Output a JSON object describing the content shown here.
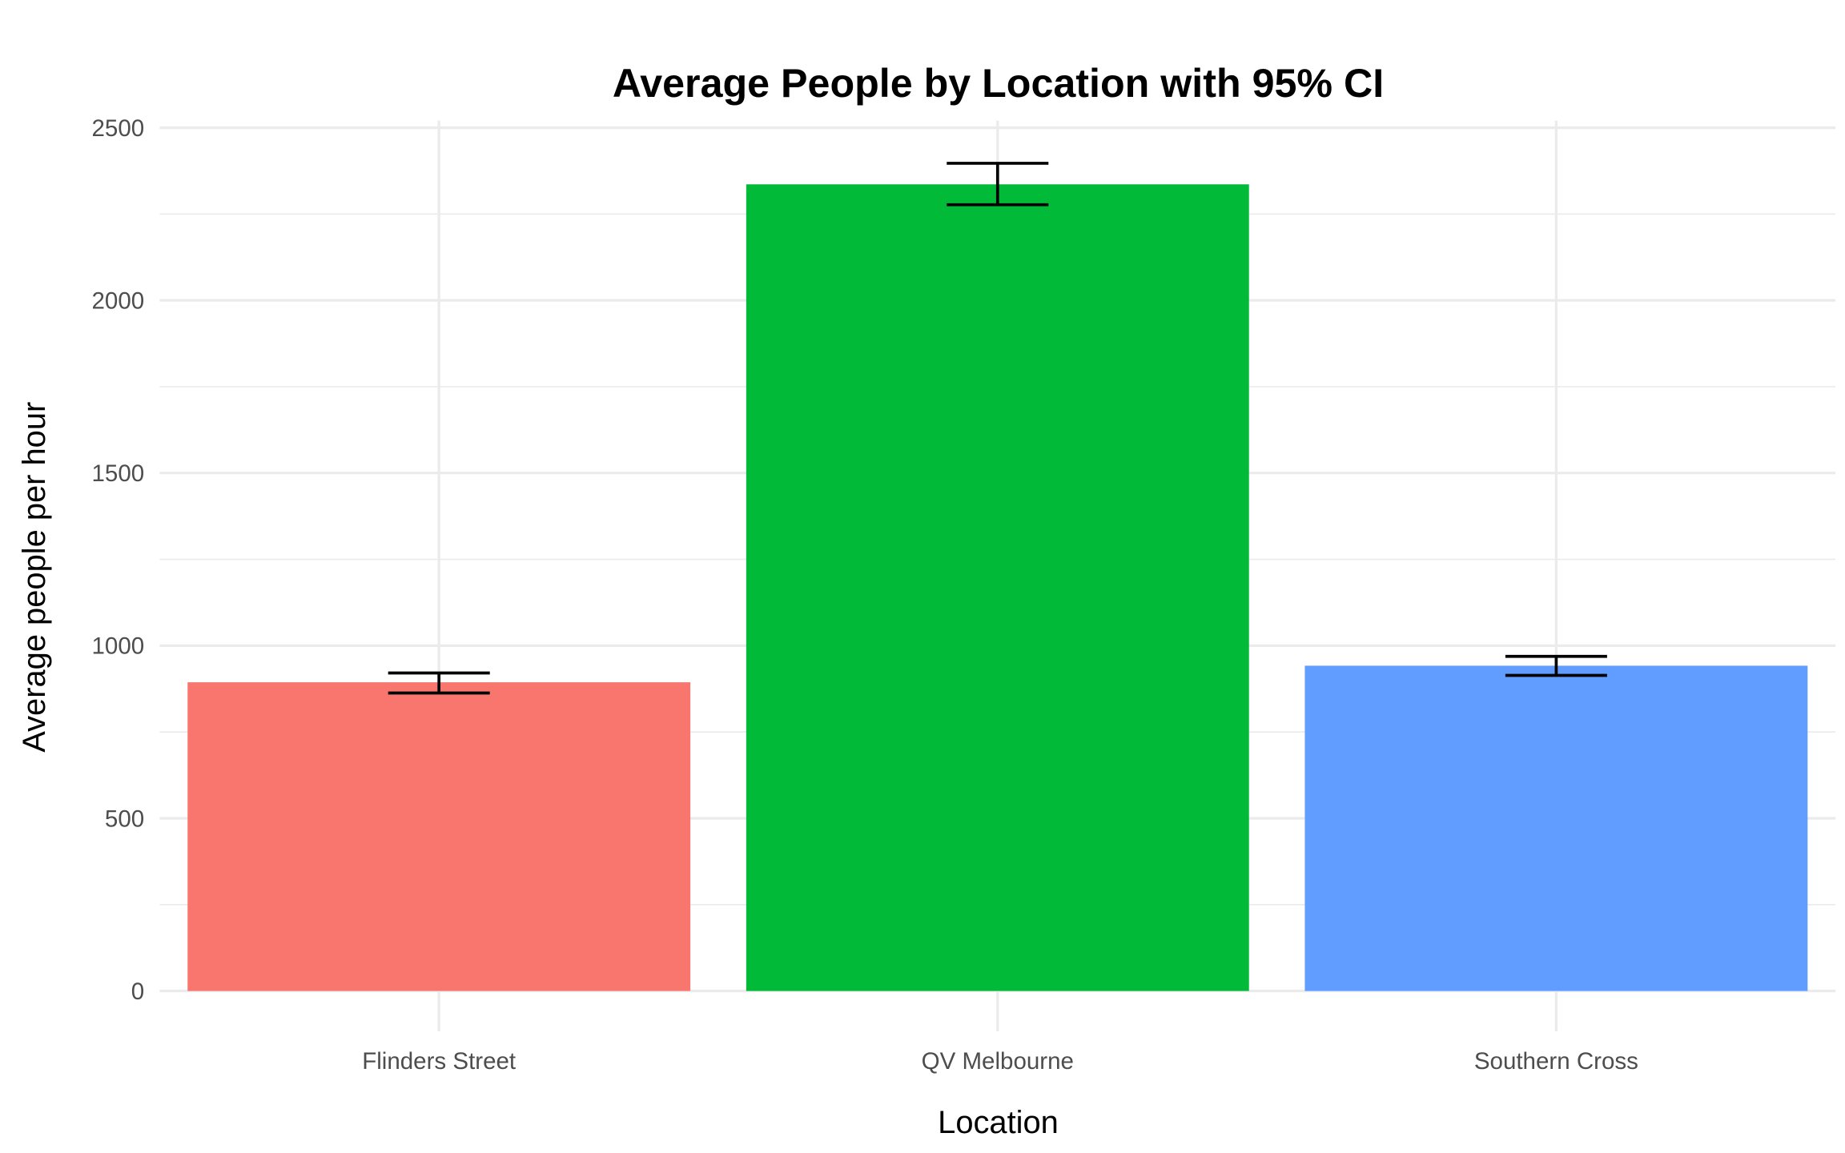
{
  "chart_data": {
    "type": "bar",
    "title": "Average People by Location with 95% CI",
    "xlabel": "Location",
    "ylabel": "Average people per hour",
    "categories": [
      "Flinders Street",
      "QV Melbourne",
      "Southern Cross"
    ],
    "values": [
      894,
      2336,
      942
    ],
    "ci_lower": [
      863,
      2277,
      914
    ],
    "ci_upper": [
      921,
      2397,
      969
    ],
    "colors": [
      "#F8766D",
      "#00BA38",
      "#619CFF"
    ],
    "ylim": [
      0,
      2500
    ],
    "yticks": [
      "0",
      "500",
      "1000",
      "1500",
      "2000",
      "2500"
    ],
    "grid": true,
    "legend": "none"
  }
}
